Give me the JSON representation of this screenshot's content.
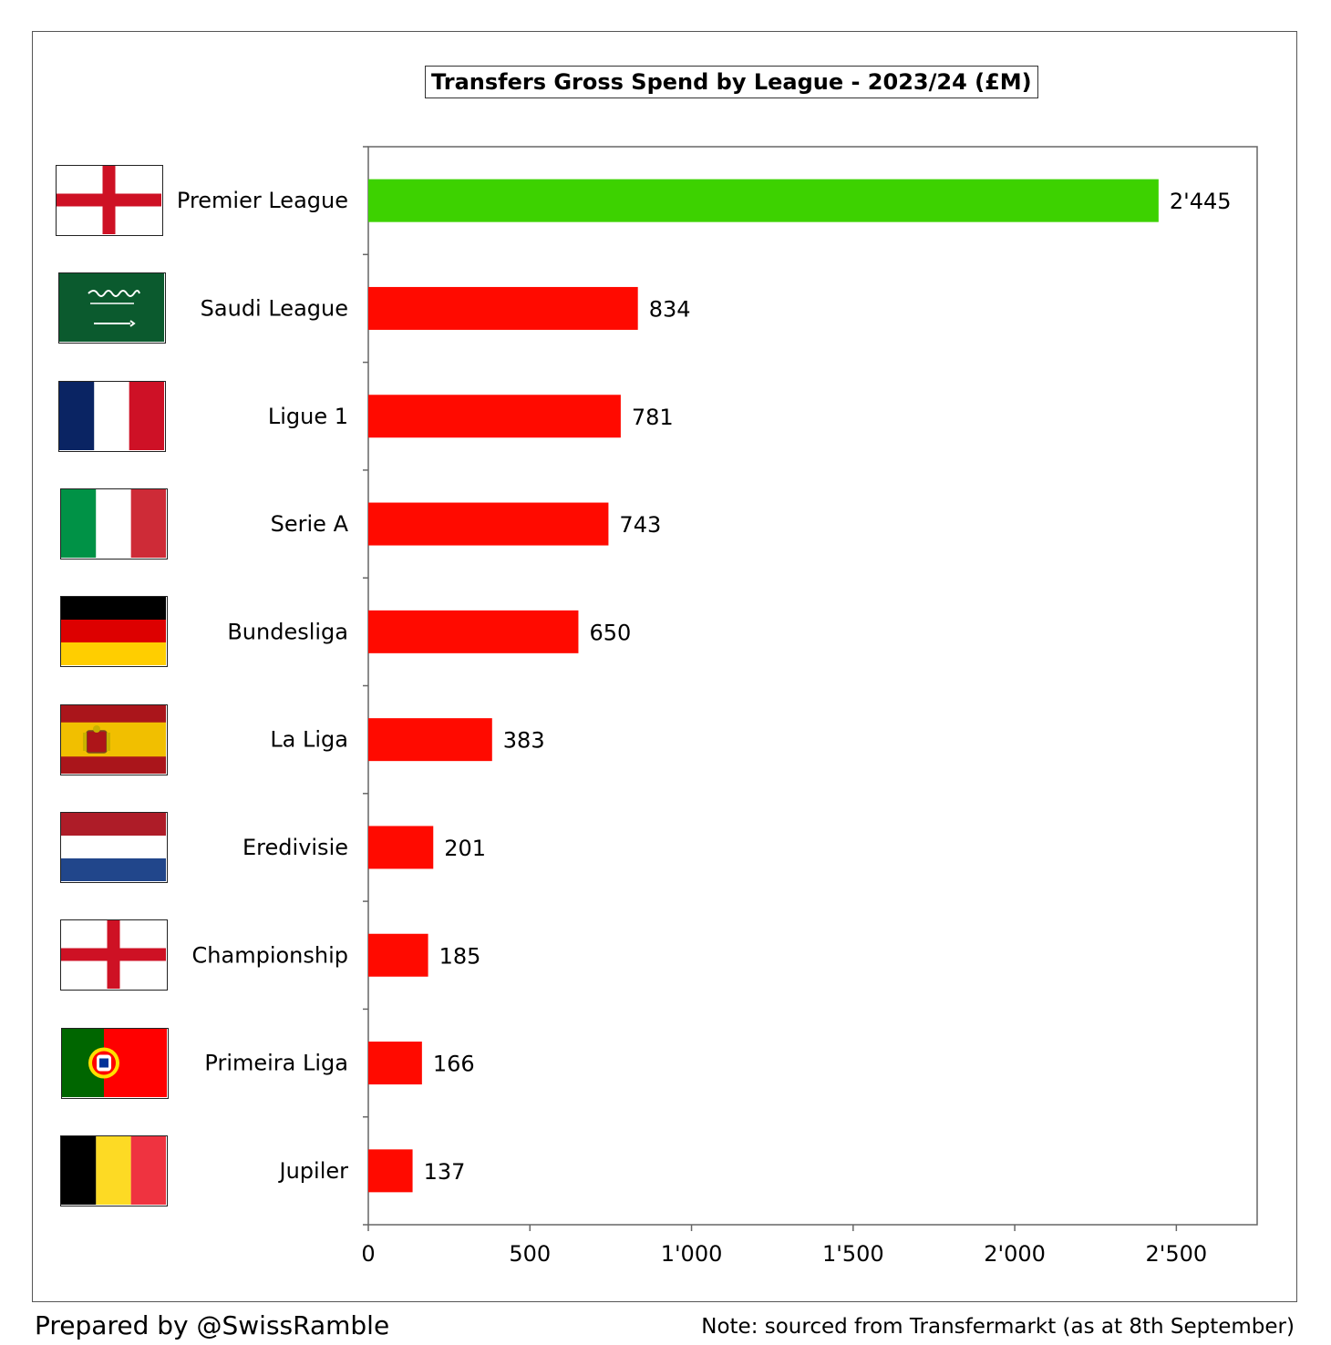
{
  "chart_data": {
    "type": "bar",
    "orientation": "horizontal",
    "title": "Transfers Gross Spend by League - 2023/24 (£M)",
    "categories": [
      "Premier League",
      "Saudi League",
      "Ligue 1",
      "Serie A",
      "Bundesliga",
      "La Liga",
      "Eredivisie",
      "Championship",
      "Primeira Liga",
      "Jupiler"
    ],
    "values": [
      2445,
      834,
      781,
      743,
      650,
      383,
      201,
      185,
      166,
      137
    ],
    "value_labels": [
      "2'445",
      "834",
      "781",
      "743",
      "650",
      "383",
      "201",
      "185",
      "166",
      "137"
    ],
    "bar_colors": [
      "#3dd200",
      "#ff0a00",
      "#ff0a00",
      "#ff0a00",
      "#ff0a00",
      "#ff0a00",
      "#ff0a00",
      "#ff0a00",
      "#ff0a00",
      "#ff0a00"
    ],
    "flags": [
      "england",
      "saudi-arabia",
      "france",
      "italy",
      "germany",
      "spain",
      "netherlands",
      "england",
      "portugal",
      "belgium"
    ],
    "xlim": [
      0,
      2750
    ],
    "xticks": [
      0,
      500,
      1000,
      1500,
      2000,
      2500
    ],
    "xtick_labels": [
      "0",
      "500",
      "1'000",
      "1'500",
      "2'000",
      "2'500"
    ],
    "grid": false
  },
  "footer": {
    "left": "Prepared by @SwissRamble",
    "right": "Note: sourced from Transfermarkt (as at 8th September)"
  }
}
